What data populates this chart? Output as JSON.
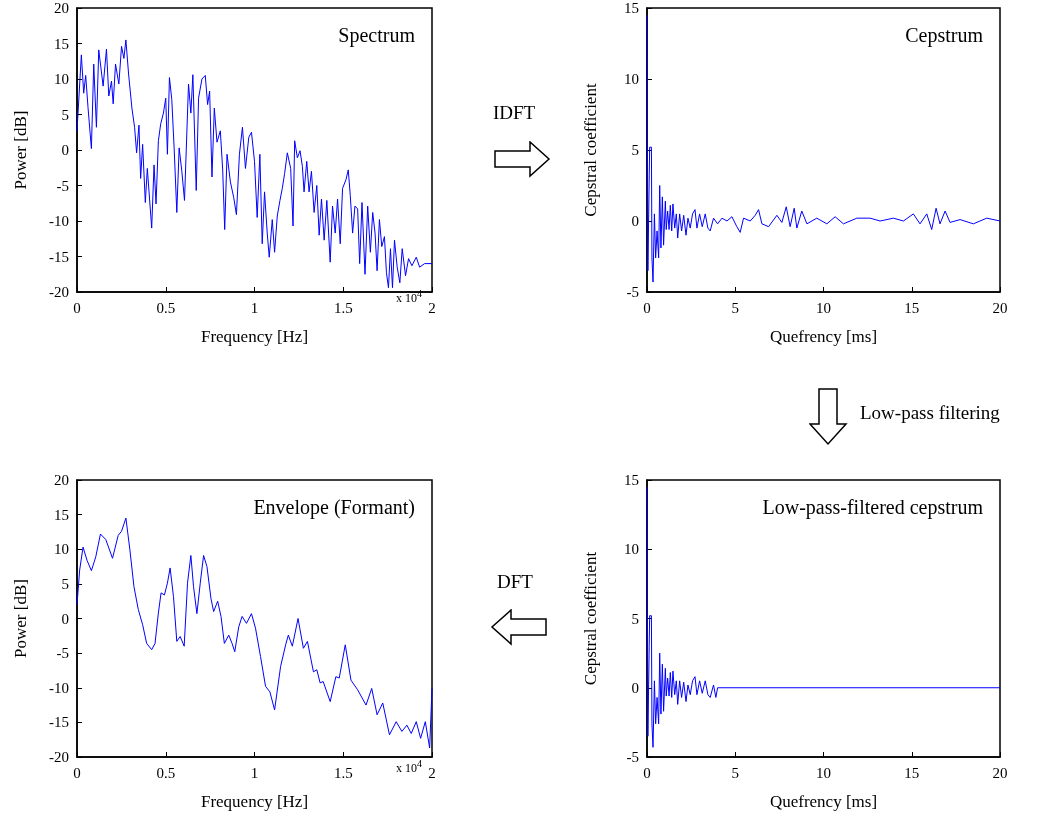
{
  "chart_data": [
    {
      "type": "line",
      "title": "Spectrum",
      "xlabel": "Frequency [Hz]",
      "ylabel": "Power [dB]",
      "color": "#0000ff",
      "xlim": [
        0,
        2
      ],
      "xticks": [
        0,
        0.5,
        1,
        1.5,
        2
      ],
      "ylim": [
        -20,
        20
      ],
      "yticks": [
        -20,
        -15,
        -10,
        -5,
        0,
        5,
        10,
        15,
        20
      ],
      "annotations": [
        "x 10$^{4}$",
        "IDFT"
      ],
      "x": [
        0,
        0.0245,
        0.0377,
        0.049,
        0.062,
        0.0811,
        0.0943,
        0.1094,
        0.1226,
        0.1472,
        0.166,
        0.1792,
        0.1943,
        0.2038,
        0.217,
        0.2358,
        0.2509,
        0.2642,
        0.2755,
        0.2906,
        0.3094,
        0.3245,
        0.3358,
        0.3491,
        0.3585,
        0.3698,
        0.3849,
        0.3962,
        0.4208,
        0.434,
        0.4453,
        0.4585,
        0.4717,
        0.4868,
        0.5,
        0.5094,
        0.5208,
        0.534,
        0.5472,
        0.5623,
        0.5755,
        0.5906,
        0.6057,
        0.6283,
        0.6415,
        0.6528,
        0.6717,
        0.6849,
        0.7038,
        0.7226,
        0.7358,
        0.7472,
        0.7604,
        0.7736,
        0.7887,
        0.8075,
        0.8208,
        0.8321,
        0.8453,
        0.8642,
        0.883,
        0.8981,
        0.9151,
        0.9321,
        0.9491,
        0.9679,
        0.983,
        1,
        1.0151,
        1.0302,
        1.0434,
        1.0566,
        1.0717,
        1.083,
        1.1,
        1.1132,
        1.1283,
        1.1434,
        1.1566,
        1.1698,
        1.1849,
        1.2038,
        1.217,
        1.2264,
        1.2415,
        1.2566,
        1.2698,
        1.2792,
        1.2943,
        1.3075,
        1.3208,
        1.3358,
        1.3509,
        1.3642,
        1.3774,
        1.3925,
        1.4075,
        1.4264,
        1.4396,
        1.4547,
        1.4679,
        1.483,
        1.4962,
        1.5151,
        1.5283,
        1.5396,
        1.5528,
        1.566,
        1.5811,
        1.5925,
        1.6057,
        1.6226,
        1.6377,
        1.6528,
        1.666,
        1.6792,
        1.6906,
        1.7038,
        1.717,
        1.7321,
        1.7434,
        1.7547,
        1.766,
        1.7774,
        1.7887,
        1.8038,
        1.8189,
        1.8321,
        1.8509,
        1.8679,
        1.8868,
        1.9113,
        1.9302,
        1.9585,
        2
      ],
      "values": [
        2.7,
        13.4,
        8,
        10.5,
        6,
        0.2,
        12.1,
        3.2,
        14.1,
        9,
        14.2,
        7.6,
        9.7,
        6.5,
        12.1,
        9.3,
        14.6,
        12.9,
        15.5,
        10.7,
        5.9,
        3.2,
        -0.4,
        3.5,
        -4,
        0.8,
        -7.4,
        -2.6,
        -11,
        -2.1,
        -7.6,
        1.3,
        3.7,
        5.2,
        7.3,
        -0.6,
        10.2,
        7.1,
        0.3,
        -8.8,
        0.3,
        -3,
        -7.1,
        9.3,
        5.2,
        10.6,
        -5.7,
        7.3,
        10,
        10.5,
        6.4,
        8.3,
        -3.8,
        5.9,
        1.1,
        2.7,
        -2.8,
        -11.2,
        -0.6,
        -4.5,
        -6.7,
        -9.1,
        -0.6,
        3.2,
        -2.6,
        1.8,
        2.5,
        -1.6,
        -9.5,
        -0.6,
        -13.2,
        -5.9,
        -11.7,
        -15.1,
        -9.8,
        -14.4,
        -9.3,
        -7.1,
        -5.4,
        -3.3,
        -0.4,
        -2.6,
        -10.7,
        1.3,
        -1.1,
        -0.1,
        -2.3,
        -5.9,
        -1.6,
        -5.9,
        -3,
        -8.8,
        -5,
        -12,
        -6.9,
        -12.7,
        -7.1,
        -15.8,
        -7.9,
        -11.7,
        -6.9,
        -13.2,
        -5.4,
        -4.2,
        -2.8,
        -6.4,
        -11.7,
        -7.9,
        -8.3,
        -16,
        -7.4,
        -17.5,
        -7.9,
        -14.4,
        -8.8,
        -11.7,
        -17,
        -9.8,
        -13.6,
        -12.2,
        -17.3,
        -19.4,
        -13.9,
        -19.4,
        -12.7,
        -16.5,
        -18.7,
        -13.9,
        -17.7,
        -15.3,
        -16.3,
        -15.1,
        -16.5,
        -16,
        -16
      ]
    },
    {
      "type": "line",
      "title": "Cepstrum",
      "xlabel": "Quefrency [ms]",
      "ylabel": "Cepstral coefficient",
      "color": "#0000ff",
      "xlim": [
        0,
        20
      ],
      "xticks": [
        0,
        5,
        10,
        15,
        20
      ],
      "ylim": [
        -5,
        15
      ],
      "yticks": [
        -5,
        0,
        5,
        10,
        15
      ],
      "annotations": [
        "Low-pass filtering"
      ],
      "x": [
        0,
        0.05,
        0.15,
        0.25,
        0.28,
        0.34,
        0.42,
        0.49,
        0.57,
        0.66,
        0.72,
        0.79,
        0.87,
        0.94,
        1.04,
        1.09,
        1.17,
        1.25,
        1.32,
        1.4,
        1.47,
        1.57,
        1.66,
        1.74,
        1.85,
        1.96,
        2.08,
        2.21,
        2.32,
        2.45,
        2.58,
        2.72,
        2.83,
        2.98,
        3.13,
        3.3,
        3.45,
        3.58,
        3.77,
        4,
        4.25,
        4.53,
        4.81,
        5.09,
        5.28,
        5.47,
        5.85,
        6.13,
        6.32,
        6.51,
        6.89,
        7.36,
        7.64,
        7.89,
        8.11,
        8.34,
        8.49,
        8.77,
        9.06,
        9.62,
        10.19,
        10.66,
        11.13,
        11.89,
        12.64,
        13.21,
        13.96,
        14.53,
        15.09,
        15.47,
        15.85,
        16.13,
        16.38,
        16.6,
        16.89,
        17.17,
        17.74,
        18.49,
        19.25,
        20
      ],
      "values": [
        14.5,
        -3.5,
        5.2,
        5.2,
        -2.6,
        -4.3,
        0.5,
        -2.6,
        -0.7,
        -2.6,
        2.5,
        -1.9,
        1.7,
        -1.7,
        1.4,
        -0.6,
        0.7,
        -0.6,
        1.1,
        -0.7,
        1.2,
        -0.5,
        0.5,
        -1.2,
        0.5,
        -0.7,
        0.4,
        -1,
        0.2,
        -0.5,
        0.5,
        0.8,
        -0.5,
        0.5,
        -0.4,
        0.5,
        -0.5,
        -0.7,
        0.2,
        -0.2,
        0.2,
        0,
        0.3,
        -0.4,
        -0.8,
        0.2,
        0,
        0.4,
        0.8,
        -0.2,
        -0.4,
        0.4,
        -0.1,
        1,
        -0.4,
        0.9,
        -0.5,
        0.7,
        -0.2,
        0.2,
        -0.2,
        0.3,
        -0.2,
        0.2,
        0.2,
        0,
        0.2,
        0,
        0.5,
        -0.2,
        0.5,
        -0.6,
        0.9,
        -0.2,
        0.7,
        -0.1,
        0.1,
        -0.2,
        0.2,
        0
      ]
    },
    {
      "type": "line",
      "title": "Envelope (Formant)",
      "xlabel": "Frequency [Hz]",
      "ylabel": "Power [dB]",
      "color": "#0000ff",
      "xlim": [
        0,
        2
      ],
      "xticks": [
        0,
        0.5,
        1,
        1.5,
        2
      ],
      "ylim": [
        -20,
        20
      ],
      "yticks": [
        -20,
        -15,
        -10,
        -5,
        0,
        5,
        10,
        15,
        20
      ],
      "annotations": [
        "x 10$^{4}$"
      ],
      "x": [
        0,
        0.015,
        0.034,
        0.0566,
        0.0811,
        0.1057,
        0.1321,
        0.1623,
        0.2,
        0.2321,
        0.2509,
        0.2755,
        0.2981,
        0.3208,
        0.3453,
        0.3698,
        0.3925,
        0.4208,
        0.4396,
        0.4585,
        0.4736,
        0.4925,
        0.5094,
        0.5245,
        0.5434,
        0.5623,
        0.5811,
        0.6038,
        0.6226,
        0.6415,
        0.6566,
        0.6755,
        0.6943,
        0.7132,
        0.7321,
        0.7547,
        0.7698,
        0.7925,
        0.8113,
        0.8302,
        0.8547,
        0.8736,
        0.8887,
        0.9113,
        0.9302,
        0.9547,
        0.983,
        1.0057,
        1.034,
        1.0623,
        1.0868,
        1.1132,
        1.1472,
        1.1755,
        1.1906,
        1.2132,
        1.2453,
        1.2755,
        1.2981,
        1.3321,
        1.351,
        1.3698,
        1.3868,
        1.4264,
        1.4585,
        1.4774,
        1.5113,
        1.5434,
        1.5811,
        1.6283,
        1.6604,
        1.6906,
        1.7226,
        1.7604,
        1.7981,
        1.8302,
        1.8585,
        1.883,
        1.9113,
        1.9359,
        1.9623,
        1.9868,
        2
      ],
      "values": [
        2,
        7,
        10.3,
        8.4,
        6.9,
        8.9,
        12.2,
        11.4,
        8.7,
        12,
        12.6,
        14.5,
        9.9,
        4.6,
        1.3,
        -0.9,
        -3.6,
        -4.5,
        -3.6,
        0.8,
        3.7,
        3.4,
        5.1,
        7.3,
        3.2,
        -3.3,
        -2.6,
        -4,
        5.1,
        9.1,
        4.6,
        0.7,
        5.1,
        9.1,
        7.5,
        2.9,
        1,
        2.5,
        0.3,
        -3.6,
        -2.4,
        -3.6,
        -4.8,
        -1.2,
        0.3,
        -0.7,
        0.7,
        -1.4,
        -5.5,
        -9.8,
        -10.6,
        -13.2,
        -6.9,
        -3.8,
        -2.4,
        -4,
        0,
        -4.3,
        -3.3,
        -7.7,
        -7.4,
        -9.3,
        -9.1,
        -12,
        -8.4,
        -8.6,
        -3.8,
        -8.9,
        -10.3,
        -12.5,
        -10.1,
        -13.9,
        -12.2,
        -16.8,
        -14.9,
        -16.3,
        -15.4,
        -16.6,
        -14.9,
        -17.3,
        -14.9,
        -18.7,
        -10.1
      ]
    },
    {
      "type": "line",
      "title": "Low-pass-filtered cepstrum",
      "xlabel": "Quefrency [ms]",
      "ylabel": "Cepstral coefficient",
      "color": "#0000ff",
      "xlim": [
        0,
        20
      ],
      "xticks": [
        0,
        5,
        10,
        15,
        20
      ],
      "ylim": [
        -5,
        15
      ],
      "yticks": [
        -5,
        0,
        5,
        10,
        15
      ],
      "annotations": [
        "DFT"
      ],
      "x": [
        0,
        0.05,
        0.15,
        0.25,
        0.28,
        0.34,
        0.42,
        0.49,
        0.57,
        0.66,
        0.72,
        0.79,
        0.87,
        0.94,
        1.04,
        1.09,
        1.17,
        1.25,
        1.32,
        1.4,
        1.47,
        1.57,
        1.66,
        1.74,
        1.85,
        1.96,
        2.08,
        2.21,
        2.32,
        2.45,
        2.58,
        2.72,
        2.83,
        2.98,
        3.13,
        3.3,
        3.45,
        3.58,
        3.77,
        3.9,
        4,
        20
      ],
      "values": [
        14.5,
        -3.5,
        5.2,
        5.2,
        -2.6,
        -4.3,
        0.5,
        -2.6,
        -0.7,
        -2.6,
        2.5,
        -1.9,
        1.7,
        -1.7,
        1.4,
        -0.6,
        0.7,
        -0.6,
        1.1,
        -0.7,
        1.2,
        -0.5,
        0.5,
        -1.2,
        0.5,
        -0.7,
        0.4,
        -1,
        0.2,
        -0.5,
        0.5,
        0.8,
        -0.5,
        0.5,
        -0.4,
        0.5,
        -0.5,
        -0.7,
        0.2,
        -0.7,
        0,
        0
      ]
    }
  ]
}
